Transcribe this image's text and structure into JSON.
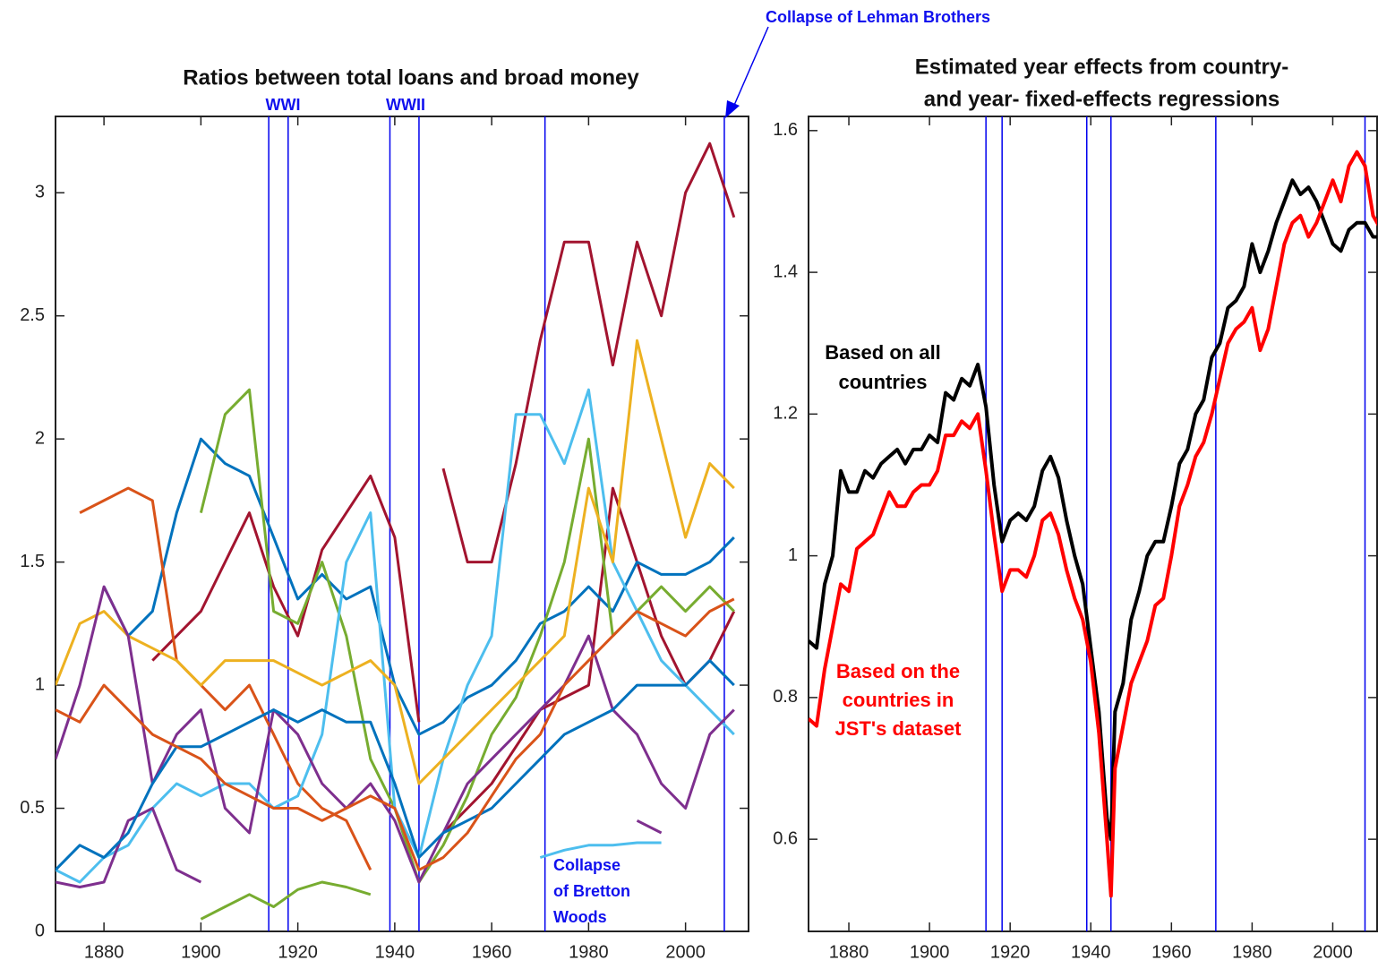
{
  "chart_data": [
    {
      "type": "line",
      "title": "Ratios between total loans and broad money",
      "xlim": [
        1870,
        2013
      ],
      "ylim": [
        0,
        3.31
      ],
      "xticks": [
        1880,
        1900,
        1920,
        1940,
        1960,
        1980,
        2000
      ],
      "yticks": [
        0,
        0.5,
        1,
        1.5,
        2,
        2.5,
        3
      ],
      "event_years": [
        1914,
        1918,
        1939,
        1945,
        1971,
        2008
      ],
      "annotations": {
        "wwi": "WWI",
        "wwii": "WWII",
        "lehman": "Collapse of Lehman Brothers",
        "bretton": [
          "Collapse",
          "of Bretton",
          "Woods"
        ]
      },
      "x": [
        1870,
        1875,
        1880,
        1885,
        1890,
        1895,
        1900,
        1905,
        1910,
        1915,
        1920,
        1925,
        1930,
        1935,
        1940,
        1945,
        1950,
        1955,
        1960,
        1965,
        1970,
        1975,
        1980,
        1985,
        1990,
        1995,
        2000,
        2005,
        2010
      ],
      "series": [
        {
          "color": "#A2142F",
          "values": [
            null,
            null,
            null,
            null,
            null,
            null,
            null,
            null,
            null,
            null,
            null,
            null,
            null,
            null,
            null,
            null,
            1.88,
            1.5,
            1.5,
            1.9,
            2.4,
            2.8,
            2.8,
            2.3,
            2.8,
            2.5,
            3.0,
            3.2,
            2.9
          ]
        },
        {
          "color": "#A2142F",
          "values": [
            null,
            null,
            null,
            null,
            1.1,
            1.2,
            1.3,
            1.5,
            1.7,
            1.4,
            1.2,
            1.55,
            1.7,
            1.85,
            1.6,
            0.85,
            null,
            null,
            null,
            null,
            null,
            null,
            null,
            null,
            null,
            null,
            null,
            null,
            null
          ]
        },
        {
          "color": "#A2142F",
          "values": [
            null,
            null,
            null,
            null,
            null,
            null,
            null,
            null,
            null,
            null,
            null,
            null,
            null,
            null,
            null,
            null,
            0.4,
            0.5,
            0.6,
            0.75,
            0.9,
            0.95,
            1.0,
            1.8,
            1.5,
            1.2,
            1.0,
            1.1,
            1.3
          ]
        },
        {
          "color": "#0072BD",
          "values": [
            null,
            null,
            1.4,
            1.2,
            1.3,
            1.7,
            2.0,
            1.9,
            1.85,
            1.6,
            1.35,
            1.45,
            1.35,
            1.4,
            1.0,
            0.8,
            0.85,
            0.95,
            1.0,
            1.1,
            1.25,
            1.3,
            1.4,
            1.3,
            1.5,
            1.45,
            1.45,
            1.5,
            1.6
          ]
        },
        {
          "color": "#D95319",
          "values": [
            null,
            1.7,
            1.75,
            1.8,
            1.75,
            1.1,
            1.0,
            0.9,
            1.0,
            0.8,
            0.6,
            0.5,
            0.45,
            0.25,
            null,
            null,
            null,
            null,
            null,
            null,
            null,
            null,
            null,
            null,
            null,
            null,
            null,
            null,
            null
          ]
        },
        {
          "color": "#77AC30",
          "values": [
            null,
            null,
            null,
            null,
            null,
            null,
            1.7,
            2.1,
            2.2,
            1.3,
            1.25,
            1.5,
            1.2,
            0.7,
            0.5,
            0.2,
            0.35,
            0.55,
            0.8,
            0.95,
            1.2,
            1.5,
            2.0,
            1.2,
            1.3,
            1.4,
            1.3,
            1.4,
            1.3
          ]
        },
        {
          "color": "#4DBEEE",
          "values": [
            0.25,
            0.2,
            0.3,
            0.35,
            0.5,
            0.6,
            0.55,
            0.6,
            0.6,
            0.5,
            0.55,
            0.8,
            1.5,
            1.7,
            0.5,
            0.3,
            0.7,
            1.0,
            1.2,
            2.1,
            2.1,
            1.9,
            2.2,
            1.5,
            1.3,
            1.1,
            1.0,
            0.9,
            0.8
          ]
        },
        {
          "color": "#EDB120",
          "values": [
            1.0,
            1.25,
            1.3,
            1.2,
            1.15,
            1.1,
            1.0,
            1.1,
            1.1,
            1.1,
            1.05,
            1.0,
            1.05,
            1.1,
            1.0,
            0.6,
            0.7,
            0.8,
            0.9,
            1.0,
            1.1,
            1.2,
            1.8,
            1.5,
            2.4,
            2.0,
            1.6,
            1.9,
            1.8
          ]
        },
        {
          "color": "#7E2F8E",
          "values": [
            0.7,
            1.0,
            1.4,
            1.2,
            0.6,
            0.8,
            0.9,
            0.5,
            0.4,
            0.9,
            0.8,
            0.6,
            0.5,
            0.6,
            0.45,
            0.2,
            0.4,
            0.6,
            0.7,
            0.8,
            0.9,
            1.0,
            1.2,
            0.9,
            0.8,
            0.6,
            0.5,
            0.8,
            0.9
          ]
        },
        {
          "color": "#77AC30",
          "values": [
            null,
            null,
            null,
            null,
            null,
            null,
            0.05,
            0.1,
            0.15,
            0.1,
            0.17,
            0.2,
            0.18,
            0.15,
            null,
            null,
            null,
            null,
            null,
            null,
            null,
            null,
            null,
            null,
            null,
            null,
            null,
            null,
            null
          ]
        },
        {
          "color": "#4DBEEE",
          "values": [
            null,
            null,
            null,
            null,
            null,
            null,
            null,
            null,
            null,
            null,
            null,
            null,
            null,
            null,
            null,
            null,
            null,
            null,
            null,
            null,
            0.3,
            0.33,
            0.35,
            0.35,
            0.36,
            0.36,
            null,
            null,
            null
          ]
        },
        {
          "color": "#7E2F8E",
          "values": [
            0.2,
            0.18,
            0.2,
            0.45,
            0.5,
            0.25,
            0.2,
            null,
            null,
            null,
            null,
            null,
            null,
            null,
            null,
            null,
            null,
            null,
            null,
            null,
            null,
            null,
            null,
            null,
            0.45,
            0.4,
            null,
            null,
            null
          ]
        },
        {
          "color": "#0072BD",
          "values": [
            0.25,
            0.35,
            0.3,
            0.4,
            0.6,
            0.75,
            0.75,
            0.8,
            0.85,
            0.9,
            0.85,
            0.9,
            0.85,
            0.85,
            0.6,
            0.3,
            0.4,
            0.45,
            0.5,
            0.6,
            0.7,
            0.8,
            0.85,
            0.9,
            1.0,
            1.0,
            1.0,
            1.1,
            1.0
          ]
        },
        {
          "color": "#D95319",
          "values": [
            0.9,
            0.85,
            1.0,
            0.9,
            0.8,
            0.75,
            0.7,
            0.6,
            0.55,
            0.5,
            0.5,
            0.45,
            0.5,
            0.55,
            0.5,
            0.25,
            0.3,
            0.4,
            0.55,
            0.7,
            0.8,
            1.0,
            1.1,
            1.2,
            1.3,
            1.25,
            1.2,
            1.3,
            1.35
          ]
        }
      ]
    },
    {
      "type": "line",
      "title": [
        "Estimated year effects from country-",
        "and year-  fixed-effects regressions"
      ],
      "xlim": [
        1870,
        2011
      ],
      "ylim": [
        0.47,
        1.62
      ],
      "xticks": [
        1880,
        1900,
        1920,
        1940,
        1960,
        1980,
        2000
      ],
      "yticks": [
        0.6,
        0.8,
        1,
        1.2,
        1.4,
        1.6
      ],
      "event_years": [
        1914,
        1918,
        1939,
        1945,
        1971,
        2008
      ],
      "annotations": {
        "all": [
          "Based on all",
          "countries"
        ],
        "jst": [
          "Based on the",
          "countries in",
          "JST's dataset"
        ]
      },
      "x": [
        1870,
        1872,
        1874,
        1876,
        1878,
        1880,
        1882,
        1884,
        1886,
        1888,
        1890,
        1892,
        1894,
        1896,
        1898,
        1900,
        1902,
        1904,
        1906,
        1908,
        1910,
        1912,
        1914,
        1916,
        1918,
        1920,
        1922,
        1924,
        1926,
        1928,
        1930,
        1932,
        1934,
        1936,
        1938,
        1940,
        1942,
        1944,
        1945,
        1946,
        1948,
        1950,
        1952,
        1954,
        1956,
        1958,
        1960,
        1962,
        1964,
        1966,
        1968,
        1970,
        1972,
        1974,
        1976,
        1978,
        1980,
        1982,
        1984,
        1986,
        1988,
        1990,
        1992,
        1994,
        1996,
        1998,
        2000,
        2002,
        2004,
        2006,
        2008,
        2010,
        2012
      ],
      "series": [
        {
          "color": "#000000",
          "values": [
            0.88,
            0.87,
            0.96,
            1.0,
            1.12,
            1.09,
            1.09,
            1.12,
            1.11,
            1.13,
            1.14,
            1.15,
            1.13,
            1.15,
            1.15,
            1.17,
            1.16,
            1.23,
            1.22,
            1.25,
            1.24,
            1.27,
            1.21,
            1.1,
            1.02,
            1.05,
            1.06,
            1.05,
            1.07,
            1.12,
            1.14,
            1.11,
            1.05,
            1.0,
            0.96,
            0.87,
            0.78,
            0.63,
            0.6,
            0.78,
            0.82,
            0.91,
            0.95,
            1.0,
            1.02,
            1.02,
            1.07,
            1.13,
            1.15,
            1.2,
            1.22,
            1.28,
            1.3,
            1.35,
            1.36,
            1.38,
            1.44,
            1.4,
            1.43,
            1.47,
            1.5,
            1.53,
            1.51,
            1.52,
            1.5,
            1.47,
            1.44,
            1.43,
            1.46,
            1.47,
            1.47,
            1.45,
            1.45
          ]
        },
        {
          "color": "#FF0000",
          "values": [
            0.77,
            0.76,
            0.84,
            0.9,
            0.96,
            0.95,
            1.01,
            1.02,
            1.03,
            1.06,
            1.09,
            1.07,
            1.07,
            1.09,
            1.1,
            1.1,
            1.12,
            1.17,
            1.17,
            1.19,
            1.18,
            1.2,
            1.12,
            1.03,
            0.95,
            0.98,
            0.98,
            0.97,
            1.0,
            1.05,
            1.06,
            1.03,
            0.98,
            0.94,
            0.91,
            0.85,
            0.75,
            0.6,
            0.52,
            0.7,
            0.76,
            0.82,
            0.85,
            0.88,
            0.93,
            0.94,
            1.0,
            1.07,
            1.1,
            1.14,
            1.16,
            1.2,
            1.25,
            1.3,
            1.32,
            1.33,
            1.35,
            1.29,
            1.32,
            1.38,
            1.44,
            1.47,
            1.48,
            1.45,
            1.47,
            1.5,
            1.53,
            1.5,
            1.55,
            1.57,
            1.55,
            1.48,
            1.46
          ]
        }
      ]
    }
  ]
}
